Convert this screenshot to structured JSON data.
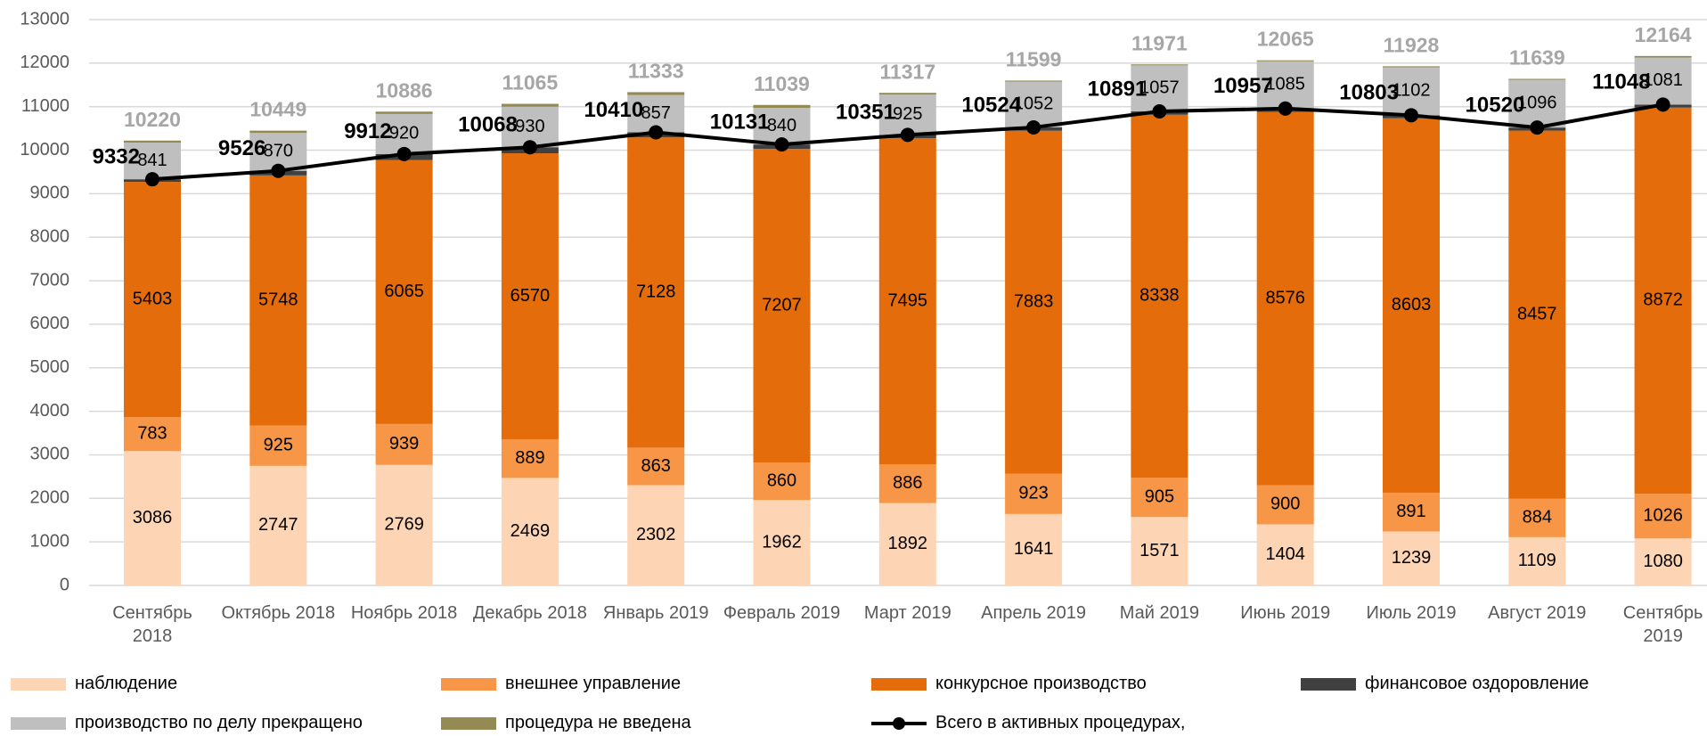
{
  "chart_data": {
    "type": "stacked-bar-line",
    "categories": [
      "Сентябрь 2018",
      "Октябрь 2018",
      "Ноябрь 2018",
      "Декабрь 2018",
      "Январь 2019",
      "Февраль 2019",
      "Март 2019",
      "Апрель 2019",
      "Май 2019",
      "Июнь 2019",
      "Июль 2019",
      "Август 2019",
      "Сентябрь 2019"
    ],
    "series": [
      {
        "name": "наблюдение",
        "color": "#fdd5b4",
        "labels": true,
        "values": [
          3086,
          2747,
          2769,
          2469,
          2302,
          1962,
          1892,
          1641,
          1571,
          1404,
          1239,
          1109,
          1080
        ]
      },
      {
        "name": "внешнее управление",
        "color": "#f79646",
        "labels": true,
        "values": [
          783,
          925,
          939,
          889,
          863,
          860,
          886,
          923,
          905,
          900,
          891,
          884,
          1026
        ]
      },
      {
        "name": "конкурсное производство",
        "color": "#e46c0a",
        "labels": true,
        "values": [
          5403,
          5748,
          6065,
          6570,
          7128,
          7207,
          7495,
          7883,
          8338,
          8576,
          8603,
          8457,
          8872
        ]
      },
      {
        "name": "финансовое оздоровление",
        "color": "#404040",
        "labels": false,
        "values": [
          60,
          106,
          139,
          140,
          117,
          102,
          78,
          77,
          77,
          77,
          70,
          70,
          70
        ]
      },
      {
        "name": "производство  по делу прекращено",
        "color": "#bfbfbf",
        "labels": true,
        "values": [
          841,
          870,
          920,
          930,
          857,
          840,
          925,
          1052,
          1057,
          1085,
          1102,
          1096,
          1081
        ]
      },
      {
        "name": "процедура  не введена",
        "color": "#948a54",
        "labels": false,
        "values": [
          47,
          53,
          54,
          67,
          66,
          68,
          41,
          23,
          23,
          23,
          23,
          23,
          35
        ]
      }
    ],
    "line": {
      "name": "Всего в активных  процедурах,",
      "color": "#000000",
      "values": [
        9332,
        9526,
        9912,
        10068,
        10410,
        10131,
        10351,
        10524,
        10891,
        10957,
        10803,
        10520,
        11048
      ]
    },
    "totals": [
      10220,
      10449,
      10886,
      11065,
      11333,
      11039,
      11317,
      11599,
      11971,
      12065,
      11928,
      11639,
      12164
    ],
    "ylim": [
      0,
      13000
    ],
    "yticks": [
      0,
      1000,
      2000,
      3000,
      4000,
      5000,
      6000,
      7000,
      8000,
      9000,
      10000,
      11000,
      12000,
      13000
    ],
    "grid": true
  }
}
